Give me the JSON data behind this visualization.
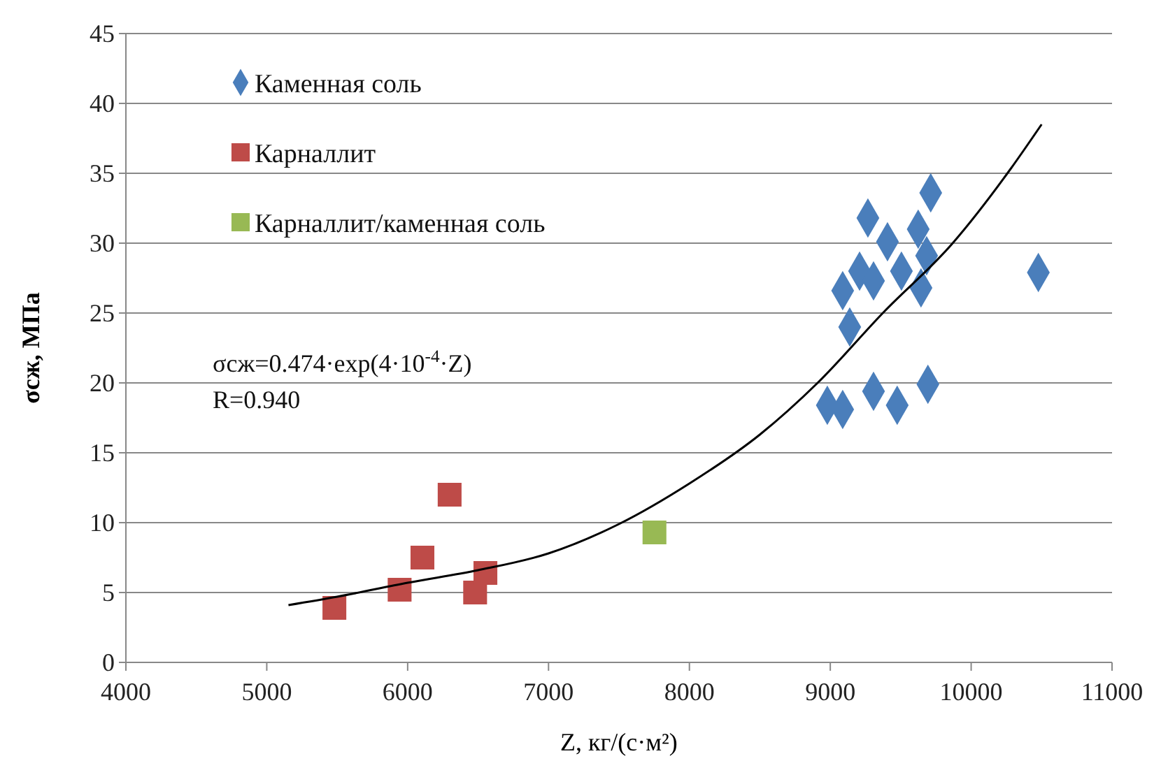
{
  "chart_data": {
    "type": "scatter",
    "xlabel": "Z, кг/(с·м²)",
    "ylabel": "σсж, МПа",
    "xlim": [
      4000,
      11000
    ],
    "xticks": [
      4000,
      5000,
      6000,
      7000,
      8000,
      9000,
      10000,
      11000
    ],
    "ylim": [
      0,
      45
    ],
    "yticks": [
      0,
      5,
      10,
      15,
      20,
      25,
      30,
      35,
      40,
      45
    ],
    "grid": "y",
    "legend": "top left",
    "annotations": [
      "σсж=0.474·exp(4·10$^{-4}$·Z)",
      "R=0.940"
    ],
    "series": [
      {
        "name": "Каменная соль",
        "color": "#4a7ebb",
        "marker": "diamond",
        "x": [
          9713,
          9267,
          9624,
          9406,
          9684,
          9208,
          9307,
          9505,
          9644,
          9088,
          9138,
          9693,
          9307,
          8979,
          9088,
          9475,
          10477
        ],
        "values": [
          33.6,
          31.8,
          31.0,
          30.1,
          29.1,
          28.0,
          27.3,
          28.0,
          26.8,
          26.6,
          24.0,
          19.9,
          19.4,
          18.4,
          18.1,
          18.4,
          27.9
        ]
      },
      {
        "name": "Карналлит",
        "color": "#be4b48",
        "marker": "square",
        "x": [
          5480,
          5943,
          6105,
          6298,
          6479,
          6552
        ],
        "values": [
          3.9,
          5.2,
          7.5,
          12.0,
          5.0,
          6.4
        ]
      },
      {
        "name": "Карналлит/каменная соль",
        "color": "#98b954",
        "marker": "square",
        "x": [
          7752
        ],
        "values": [
          9.3
        ]
      },
      {
        "type": "line",
        "color": "#000000",
        "marker": "none",
        "x": [
          5154,
          5500,
          6000,
          6500,
          7000,
          7500,
          8000,
          8500,
          8910,
          9373,
          9869,
          10279,
          10500
        ],
        "values": [
          4.1,
          4.7,
          5.7,
          6.6,
          7.8,
          9.9,
          12.8,
          16.3,
          20,
          25,
          30,
          35.3,
          38.5
        ]
      }
    ]
  }
}
